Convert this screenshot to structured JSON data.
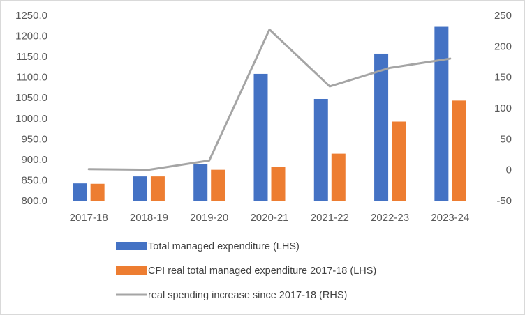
{
  "chart_data": {
    "type": "bar",
    "categories": [
      "2017-18",
      "2018-19",
      "2019-20",
      "2020-21",
      "2021-22",
      "2022-23",
      "2023-24"
    ],
    "series": [
      {
        "name": "Total managed expenditure (LHS)",
        "type": "bar",
        "axis": "left",
        "color": "#4472c4",
        "values": [
          842,
          859,
          888,
          1108,
          1047,
          1157,
          1222
        ]
      },
      {
        "name": "CPI real total managed expenditure 2017-18 (LHS)",
        "type": "bar",
        "axis": "left",
        "color": "#ed7d31",
        "values": [
          841,
          859,
          875,
          882,
          914,
          992,
          1043
        ]
      },
      {
        "name": "real spending increase since 2017-18 (RHS)",
        "type": "line",
        "axis": "right",
        "color": "#a5a5a5",
        "values": [
          1,
          0,
          15,
          227,
          135,
          165,
          180
        ]
      }
    ],
    "ylim_left": [
      800,
      1250
    ],
    "yticks_left": [
      "800.0",
      "850.0",
      "900.0",
      "950.0",
      "1000.0",
      "1050.0",
      "1100.0",
      "1150.0",
      "1200.0",
      "1250.0"
    ],
    "ylim_right": [
      -50,
      250
    ],
    "yticks_right": [
      "-50",
      "0",
      "50",
      "100",
      "150",
      "200",
      "250"
    ],
    "grid": false,
    "legend_position": "bottom"
  }
}
